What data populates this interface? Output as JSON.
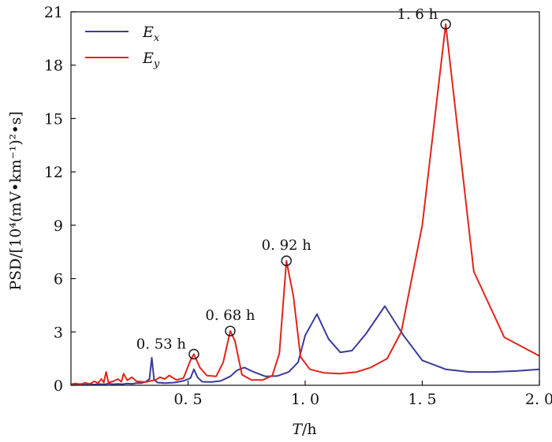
{
  "chart_data": {
    "type": "line",
    "xlabel_italic": "T",
    "xlabel_unit": "/h",
    "ylabel": "PSD/[10⁴(mV•km⁻¹)²•s]",
    "xlim": [
      0,
      2.0
    ],
    "ylim": [
      0,
      21
    ],
    "x_ticks": [
      0.5,
      1.0,
      1.5,
      2.0
    ],
    "x_tick_labels": [
      "0. 5",
      "1. 0",
      "1. 5",
      "2. 0"
    ],
    "y_ticks": [
      0,
      3,
      6,
      9,
      12,
      15,
      18,
      21
    ],
    "y_tick_labels": [
      "0",
      "3",
      "6",
      "9",
      "12",
      "15",
      "18",
      "21"
    ],
    "grid": false,
    "legend_position": "top-left",
    "series": [
      {
        "name": "E",
        "subscript": "x",
        "color": "#3b3b9a",
        "points": [
          [
            0.0,
            0.05
          ],
          [
            0.02,
            0.04
          ],
          [
            0.04,
            0.08
          ],
          [
            0.06,
            0.03
          ],
          [
            0.08,
            0.06
          ],
          [
            0.1,
            0.04
          ],
          [
            0.12,
            0.07
          ],
          [
            0.14,
            0.05
          ],
          [
            0.16,
            0.09
          ],
          [
            0.18,
            0.06
          ],
          [
            0.2,
            0.08
          ],
          [
            0.22,
            0.06
          ],
          [
            0.24,
            0.1
          ],
          [
            0.26,
            0.08
          ],
          [
            0.28,
            0.12
          ],
          [
            0.3,
            0.12
          ],
          [
            0.32,
            0.2
          ],
          [
            0.335,
            0.35
          ],
          [
            0.345,
            1.55
          ],
          [
            0.355,
            0.3
          ],
          [
            0.37,
            0.15
          ],
          [
            0.4,
            0.12
          ],
          [
            0.44,
            0.15
          ],
          [
            0.48,
            0.25
          ],
          [
            0.51,
            0.4
          ],
          [
            0.525,
            0.9
          ],
          [
            0.54,
            0.45
          ],
          [
            0.56,
            0.2
          ],
          [
            0.6,
            0.18
          ],
          [
            0.64,
            0.25
          ],
          [
            0.68,
            0.5
          ],
          [
            0.71,
            0.85
          ],
          [
            0.74,
            1.0
          ],
          [
            0.78,
            0.75
          ],
          [
            0.83,
            0.5
          ],
          [
            0.88,
            0.52
          ],
          [
            0.93,
            0.75
          ],
          [
            0.97,
            1.3
          ],
          [
            1.0,
            2.8
          ],
          [
            1.05,
            4.0
          ],
          [
            1.1,
            2.6
          ],
          [
            1.15,
            1.85
          ],
          [
            1.2,
            1.95
          ],
          [
            1.26,
            2.9
          ],
          [
            1.34,
            4.45
          ],
          [
            1.42,
            2.8
          ],
          [
            1.5,
            1.4
          ],
          [
            1.6,
            0.9
          ],
          [
            1.7,
            0.75
          ],
          [
            1.8,
            0.75
          ],
          [
            1.9,
            0.8
          ],
          [
            2.0,
            0.9
          ]
        ]
      },
      {
        "name": "E",
        "subscript": "y",
        "color": "#e0241b",
        "points": [
          [
            0.0,
            0.06
          ],
          [
            0.02,
            0.1
          ],
          [
            0.04,
            0.05
          ],
          [
            0.06,
            0.14
          ],
          [
            0.08,
            0.08
          ],
          [
            0.1,
            0.22
          ],
          [
            0.115,
            0.12
          ],
          [
            0.13,
            0.35
          ],
          [
            0.14,
            0.15
          ],
          [
            0.15,
            0.75
          ],
          [
            0.16,
            0.15
          ],
          [
            0.18,
            0.22
          ],
          [
            0.2,
            0.35
          ],
          [
            0.215,
            0.2
          ],
          [
            0.225,
            0.65
          ],
          [
            0.24,
            0.28
          ],
          [
            0.26,
            0.45
          ],
          [
            0.28,
            0.22
          ],
          [
            0.3,
            0.2
          ],
          [
            0.32,
            0.18
          ],
          [
            0.34,
            0.25
          ],
          [
            0.36,
            0.3
          ],
          [
            0.38,
            0.45
          ],
          [
            0.4,
            0.35
          ],
          [
            0.42,
            0.55
          ],
          [
            0.45,
            0.3
          ],
          [
            0.48,
            0.4
          ],
          [
            0.51,
            1.4
          ],
          [
            0.525,
            1.75
          ],
          [
            0.55,
            1.0
          ],
          [
            0.58,
            0.55
          ],
          [
            0.62,
            0.5
          ],
          [
            0.65,
            1.3
          ],
          [
            0.68,
            3.05
          ],
          [
            0.7,
            2.5
          ],
          [
            0.73,
            0.6
          ],
          [
            0.77,
            0.3
          ],
          [
            0.82,
            0.3
          ],
          [
            0.86,
            0.55
          ],
          [
            0.89,
            1.8
          ],
          [
            0.92,
            7.0
          ],
          [
            0.95,
            5.0
          ],
          [
            0.98,
            1.6
          ],
          [
            1.02,
            0.9
          ],
          [
            1.08,
            0.7
          ],
          [
            1.15,
            0.65
          ],
          [
            1.22,
            0.75
          ],
          [
            1.28,
            1.0
          ],
          [
            1.35,
            1.5
          ],
          [
            1.41,
            3.0
          ],
          [
            1.5,
            9.0
          ],
          [
            1.6,
            20.3
          ],
          [
            1.72,
            6.4
          ],
          [
            1.85,
            2.7
          ],
          [
            2.0,
            1.65
          ]
        ]
      }
    ],
    "annotations": [
      {
        "text": "0. 53 h",
        "x": 0.525,
        "y": 1.75
      },
      {
        "text": "0. 68 h",
        "x": 0.68,
        "y": 3.05
      },
      {
        "text": "0. 92 h",
        "x": 0.92,
        "y": 7.0
      },
      {
        "text": "1. 6 h",
        "x": 1.6,
        "y": 20.3
      }
    ]
  }
}
